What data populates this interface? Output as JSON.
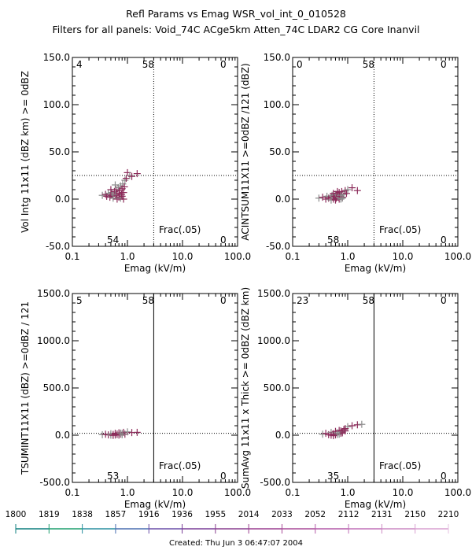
{
  "header": {
    "title": "Refl Params vs Emag   WSR_vol_int_0_010528",
    "subtitle": "Filters for all panels:  Void_74C ACge5km Atten_74C LDAR2 CG Core Inanvil"
  },
  "footer": {
    "created": "Created: Thu Jun  3 06:47:07 2004"
  },
  "timebar": {
    "labels": [
      "1800",
      "1819",
      "1838",
      "1857",
      "1916",
      "1936",
      "1955",
      "2014",
      "2033",
      "2052",
      "2112",
      "2131",
      "2150",
      "2210"
    ],
    "colors": [
      "#0f7f7f",
      "#1f9f6f",
      "#2a8fa0",
      "#4a6fb0",
      "#6a4fa8",
      "#7a3f98",
      "#8a3f8f",
      "#9a3f90",
      "#a84a98",
      "#b45aa8",
      "#c070b8",
      "#cc88c4",
      "#d8a0d0",
      "#e4c0e0"
    ]
  },
  "chart_data": [
    {
      "type": "scatter",
      "id": "top-left",
      "xlabel": "Emag (kV/m)",
      "ylabel": "Vol Intg 11x11 (dBZ km) >= 0dBZ",
      "xscale": "log",
      "xlim": [
        0.1,
        100.0
      ],
      "ylim": [
        -50.0,
        150.0
      ],
      "xticks": [
        "0.1",
        "1.0",
        "10.0",
        "100.0"
      ],
      "yticks": [
        "-50.0",
        "0.0",
        "50.0",
        "100.0",
        "150.0"
      ],
      "vline_x": 3.0,
      "vline_style": "dotted",
      "hline_y": 25.0,
      "hline_style": "dotted",
      "quadrant_counts": {
        "upper_left": "4",
        "upper_right": "0",
        "top_center": "58",
        "lower_left": "54",
        "lower_right": "0"
      },
      "annotation": "Frac(.05)",
      "points": [
        [
          0.35,
          4
        ],
        [
          0.4,
          5
        ],
        [
          0.42,
          3
        ],
        [
          0.45,
          6
        ],
        [
          0.48,
          2
        ],
        [
          0.5,
          4
        ],
        [
          0.52,
          7
        ],
        [
          0.55,
          3
        ],
        [
          0.58,
          8
        ],
        [
          0.6,
          5
        ],
        [
          0.62,
          10
        ],
        [
          0.65,
          4
        ],
        [
          0.68,
          12
        ],
        [
          0.7,
          6
        ],
        [
          0.72,
          9
        ],
        [
          0.75,
          14
        ],
        [
          0.78,
          5
        ],
        [
          0.8,
          11
        ],
        [
          0.82,
          16
        ],
        [
          0.85,
          7
        ],
        [
          0.88,
          13
        ],
        [
          0.9,
          20
        ],
        [
          0.95,
          22
        ],
        [
          1.0,
          28
        ],
        [
          1.1,
          25
        ],
        [
          1.2,
          24
        ],
        [
          1.5,
          27
        ],
        [
          0.55,
          1
        ],
        [
          0.65,
          0
        ],
        [
          0.7,
          2
        ],
        [
          0.75,
          1
        ],
        [
          0.8,
          3
        ],
        [
          0.85,
          0
        ],
        [
          0.6,
          15
        ],
        [
          0.5,
          10
        ]
      ]
    },
    {
      "type": "scatter",
      "id": "top-right",
      "xlabel": "Emag (kV/m)",
      "ylabel": "ACINTSUM11X11 >=0dBZ /121 (dBZ)",
      "xscale": "log",
      "xlim": [
        0.1,
        100.0
      ],
      "ylim": [
        -50.0,
        150.0
      ],
      "xticks": [
        "0.1",
        "1.0",
        "10.0",
        "100.0"
      ],
      "yticks": [
        "-50.0",
        "0.0",
        "50.0",
        "100.0",
        "150.0"
      ],
      "vline_x": 3.0,
      "vline_style": "dotted",
      "hline_y": 25.0,
      "hline_style": "dotted",
      "quadrant_counts": {
        "upper_left": "0",
        "upper_right": "0",
        "top_center": "58",
        "lower_left": "58",
        "lower_right": "0"
      },
      "annotation": "Frac(.05)",
      "points": [
        [
          0.3,
          1
        ],
        [
          0.35,
          2
        ],
        [
          0.4,
          0
        ],
        [
          0.42,
          3
        ],
        [
          0.45,
          1
        ],
        [
          0.5,
          2
        ],
        [
          0.52,
          4
        ],
        [
          0.55,
          0
        ],
        [
          0.58,
          3
        ],
        [
          0.6,
          5
        ],
        [
          0.62,
          1
        ],
        [
          0.65,
          6
        ],
        [
          0.68,
          2
        ],
        [
          0.7,
          7
        ],
        [
          0.72,
          3
        ],
        [
          0.75,
          4
        ],
        [
          0.78,
          8
        ],
        [
          0.8,
          2
        ],
        [
          0.85,
          5
        ],
        [
          0.9,
          9
        ],
        [
          0.95,
          6
        ],
        [
          1.0,
          10
        ],
        [
          1.2,
          12
        ],
        [
          1.5,
          9
        ],
        [
          0.5,
          -1
        ],
        [
          0.6,
          -1
        ],
        [
          0.7,
          0
        ],
        [
          0.8,
          1
        ],
        [
          0.55,
          6
        ],
        [
          0.65,
          8
        ],
        [
          0.75,
          0
        ]
      ]
    },
    {
      "type": "scatter",
      "id": "bottom-left",
      "xlabel": "Emag (kV/m)",
      "ylabel": "TSUMINT11X11 (dBZ) >=0dBZ / 121",
      "xscale": "log",
      "xlim": [
        0.1,
        100.0
      ],
      "ylim": [
        -500.0,
        1500.0
      ],
      "xticks": [
        "0.1",
        "1.0",
        "10.0",
        "100.0"
      ],
      "yticks": [
        "-500.0",
        "0.0",
        "500.0",
        "1000.0",
        "1500.0"
      ],
      "vline_x": 3.0,
      "vline_style": "solid",
      "hline_y": 20.0,
      "hline_style": "dotted",
      "quadrant_counts": {
        "upper_left": "5",
        "upper_right": "0",
        "top_center": "58",
        "lower_left": "53",
        "lower_right": "0"
      },
      "annotation": "Frac(.05)",
      "points": [
        [
          0.35,
          5
        ],
        [
          0.4,
          10
        ],
        [
          0.45,
          3
        ],
        [
          0.5,
          15
        ],
        [
          0.55,
          8
        ],
        [
          0.6,
          20
        ],
        [
          0.65,
          5
        ],
        [
          0.7,
          25
        ],
        [
          0.75,
          12
        ],
        [
          0.8,
          18
        ],
        [
          0.85,
          30
        ],
        [
          0.9,
          10
        ],
        [
          1.0,
          35
        ],
        [
          1.2,
          28
        ],
        [
          1.5,
          30
        ],
        [
          0.5,
          0
        ],
        [
          0.6,
          2
        ],
        [
          0.7,
          1
        ],
        [
          0.8,
          4
        ],
        [
          0.55,
          -2
        ],
        [
          0.65,
          12
        ],
        [
          0.75,
          22
        ]
      ]
    },
    {
      "type": "scatter",
      "id": "bottom-right",
      "xlabel": "Emag (kV/m)",
      "ylabel": "SumAvg 11x11 x Thick >= 0dBZ (dBZ km)",
      "xscale": "log",
      "xlim": [
        0.1,
        100.0
      ],
      "ylim": [
        -500.0,
        1500.0
      ],
      "xticks": [
        "0.1",
        "1.0",
        "10.0",
        "100.0"
      ],
      "yticks": [
        "-500.0",
        "0.0",
        "500.0",
        "1000.0",
        "1500.0"
      ],
      "vline_x": 3.0,
      "vline_style": "solid",
      "hline_y": 20.0,
      "hline_style": "dotted",
      "quadrant_counts": {
        "upper_left": "23",
        "upper_right": "0",
        "top_center": "58",
        "lower_left": "35",
        "lower_right": "0"
      },
      "annotation": "Frac(.05)",
      "points": [
        [
          0.35,
          10
        ],
        [
          0.4,
          20
        ],
        [
          0.45,
          5
        ],
        [
          0.5,
          30
        ],
        [
          0.55,
          15
        ],
        [
          0.6,
          40
        ],
        [
          0.65,
          8
        ],
        [
          0.7,
          50
        ],
        [
          0.75,
          20
        ],
        [
          0.8,
          35
        ],
        [
          0.85,
          60
        ],
        [
          0.9,
          45
        ],
        [
          1.0,
          90
        ],
        [
          1.2,
          100
        ],
        [
          1.5,
          110
        ],
        [
          1.8,
          115
        ],
        [
          0.5,
          0
        ],
        [
          0.6,
          3
        ],
        [
          0.7,
          10
        ],
        [
          0.8,
          25
        ],
        [
          0.55,
          -5
        ],
        [
          0.65,
          25
        ],
        [
          0.75,
          45
        ],
        [
          0.9,
          70
        ]
      ]
    }
  ]
}
